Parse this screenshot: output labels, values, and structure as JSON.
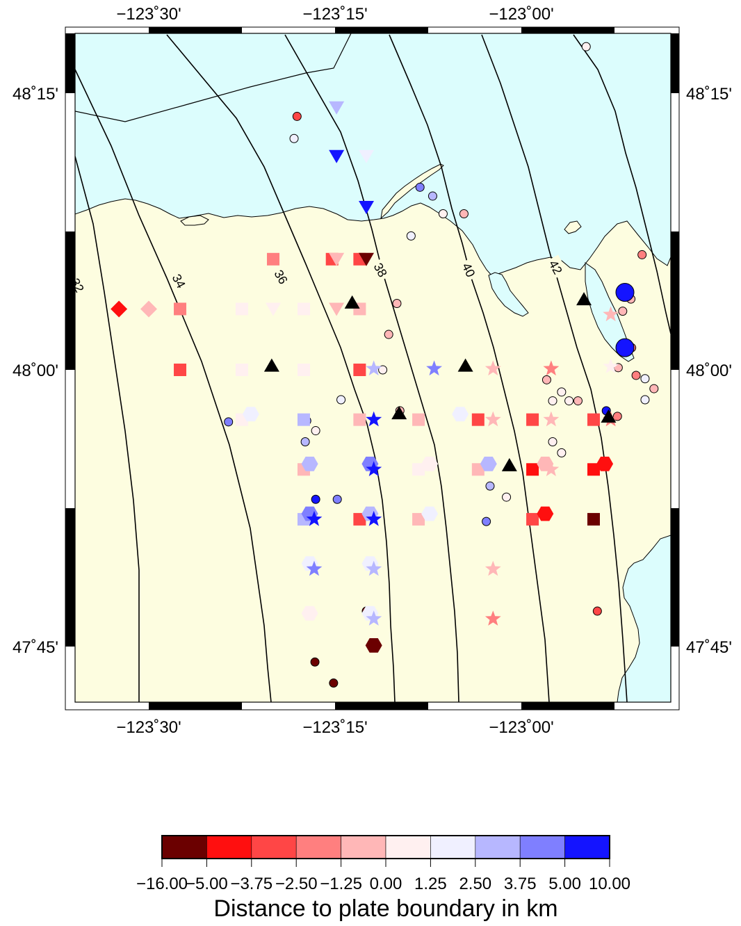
{
  "map": {
    "lon_ticks": [
      {
        "lon": -123.5,
        "label": "−123˚30'"
      },
      {
        "lon": -123.25,
        "label": "−123˚15'"
      },
      {
        "lon": -123.0,
        "label": "−123˚00'"
      }
    ],
    "lat_ticks": [
      {
        "lat": 48.25,
        "label": "48˚15'"
      },
      {
        "lat": 48.0,
        "label": "48˚00'"
      },
      {
        "lat": 47.75,
        "label": "47˚45'"
      }
    ],
    "contours": [
      {
        "label": "32"
      },
      {
        "label": "34"
      },
      {
        "label": "36"
      },
      {
        "label": "38"
      },
      {
        "label": "40"
      },
      {
        "label": "42"
      }
    ],
    "colors": {
      "land": "#fdfde0",
      "water": "#dcfdfd"
    }
  },
  "legend": {
    "title": "Distance to plate boundary in km",
    "bins": [
      {
        "label": "−16.00",
        "color": "#6b0000"
      },
      {
        "label": "−5.00",
        "color": "#ff0f0f"
      },
      {
        "label": "−3.75",
        "color": "#ff4646"
      },
      {
        "label": "−2.50",
        "color": "#ff7f7f"
      },
      {
        "label": "−1.25",
        "color": "#ffb7b7"
      },
      {
        "label": "0.00",
        "color": "#fff0f0"
      },
      {
        "label": "1.25",
        "color": "#f0f0ff"
      },
      {
        "label": "2.50",
        "color": "#b7b7ff"
      },
      {
        "label": "3.75",
        "color": "#7f7fff"
      },
      {
        "label": "5.00",
        "color": "#1414ff"
      },
      {
        "label": "10.00",
        "color": "#00005a"
      }
    ]
  },
  "stations": [
    {
      "shape": "circle",
      "lon": -122.955,
      "lat": 48.328,
      "dist": -10
    },
    {
      "shape": "circle",
      "lon": -122.913,
      "lat": 48.292,
      "dist": 0.2
    },
    {
      "shape": "circle",
      "lon": -123.301,
      "lat": 48.229,
      "dist": -3.5
    },
    {
      "shape": "circle",
      "lon": -123.305,
      "lat": 48.209,
      "dist": 2.3
    },
    {
      "shape": "circle",
      "lon": -123.136,
      "lat": 48.165,
      "dist": 4.5
    },
    {
      "shape": "circle",
      "lon": -123.119,
      "lat": 48.157,
      "dist": 3.5
    },
    {
      "shape": "circle",
      "lon": -123.105,
      "lat": 48.141,
      "dist": 0.4
    },
    {
      "shape": "circle",
      "lon": -123.077,
      "lat": 48.141,
      "dist": -0.2
    },
    {
      "shape": "circle",
      "lon": -123.148,
      "lat": 48.121,
      "dist": 2.0
    },
    {
      "shape": "circle",
      "lon": -122.838,
      "lat": 48.104,
      "dist": -1.8
    },
    {
      "shape": "circle",
      "lon": -122.785,
      "lat": 48.096,
      "dist": -4.2
    },
    {
      "shape": "circle",
      "lon": -123.167,
      "lat": 48.06,
      "dist": -1.2
    },
    {
      "shape": "circle",
      "lon": -123.178,
      "lat": 48.032,
      "dist": -0.8
    },
    {
      "shape": "circle",
      "lon": -122.852,
      "lat": 48.02,
      "dist": -1.5
    },
    {
      "shape": "circle",
      "lon": -122.864,
      "lat": 48.053,
      "dist": -1.0
    },
    {
      "shape": "circle",
      "lon": -122.853,
      "lat": 48.064,
      "dist": -1.2
    },
    {
      "shape": "circle",
      "lon": -123.186,
      "lat": 48.0,
      "dist": 0.1
    },
    {
      "shape": "circle",
      "lon": -122.846,
      "lat": 47.995,
      "dist": -1.5
    },
    {
      "shape": "circle",
      "lon": -122.966,
      "lat": 47.991,
      "dist": -0.5
    },
    {
      "shape": "circle",
      "lon": -122.87,
      "lat": 48.002,
      "dist": -0.3
    },
    {
      "shape": "circle",
      "lon": -122.834,
      "lat": 47.992,
      "dist": 1.8
    },
    {
      "shape": "circle",
      "lon": -122.822,
      "lat": 47.983,
      "dist": -0.5
    },
    {
      "shape": "circle",
      "lon": -122.775,
      "lat": 47.99,
      "dist": 0.5
    },
    {
      "shape": "circle",
      "lon": -122.946,
      "lat": 47.98,
      "dist": 0.3
    },
    {
      "shape": "circle",
      "lon": -122.958,
      "lat": 47.972,
      "dist": 0.5
    },
    {
      "shape": "circle",
      "lon": -122.936,
      "lat": 47.972,
      "dist": 0.1
    },
    {
      "shape": "circle",
      "lon": -122.924,
      "lat": 47.972,
      "dist": -0.2
    },
    {
      "shape": "circle",
      "lon": -122.834,
      "lat": 47.973,
      "dist": 2.2
    },
    {
      "shape": "circle",
      "lon": -123.242,
      "lat": 47.973,
      "dist": 1.8
    },
    {
      "shape": "circle",
      "lon": -123.163,
      "lat": 47.963,
      "dist": -0.5
    },
    {
      "shape": "circle",
      "lon": -122.886,
      "lat": 47.963,
      "dist": 5.5
    },
    {
      "shape": "circle",
      "lon": -122.871,
      "lat": 47.958,
      "dist": -2.5
    },
    {
      "shape": "circle",
      "lon": -123.393,
      "lat": 47.953,
      "dist": 4.2
    },
    {
      "shape": "circle",
      "lon": -123.288,
      "lat": 47.954,
      "dist": 4.2
    },
    {
      "shape": "circle",
      "lon": -123.276,
      "lat": 47.945,
      "dist": 0.2
    },
    {
      "shape": "circle",
      "lon": -123.29,
      "lat": 47.935,
      "dist": 3.2
    },
    {
      "shape": "circle",
      "lon": -122.958,
      "lat": 47.935,
      "dist": 0.4
    },
    {
      "shape": "circle",
      "lon": -122.946,
      "lat": 47.925,
      "dist": 0.2
    },
    {
      "shape": "circle",
      "lon": -123.042,
      "lat": 47.895,
      "dist": 2.8
    },
    {
      "shape": "circle",
      "lon": -123.02,
      "lat": 47.885,
      "dist": 0.5
    },
    {
      "shape": "circle",
      "lon": -123.047,
      "lat": 47.863,
      "dist": 4.2
    },
    {
      "shape": "circle",
      "lon": -123.276,
      "lat": 47.883,
      "dist": 6.0
    },
    {
      "shape": "circle",
      "lon": -123.247,
      "lat": 47.883,
      "dist": 4.0
    },
    {
      "shape": "circle",
      "lon": -123.208,
      "lat": 47.782,
      "dist": -12
    },
    {
      "shape": "circle",
      "lon": -122.898,
      "lat": 47.782,
      "dist": -3.0
    },
    {
      "shape": "circle",
      "lon": -123.277,
      "lat": 47.736,
      "dist": -12
    },
    {
      "shape": "circle",
      "lon": -123.252,
      "lat": 47.717,
      "dist": -12
    },
    {
      "shape": "circle",
      "lon": -122.861,
      "lat": 48.07,
      "dist": 8,
      "size": "large"
    },
    {
      "shape": "circle",
      "lon": -122.861,
      "lat": 48.02,
      "dist": 8,
      "size": "large"
    },
    {
      "shape": "diamond",
      "lon": -123.54,
      "lat": 48.055,
      "dist": -3.8
    },
    {
      "shape": "diamond",
      "lon": -123.5,
      "lat": 48.055,
      "dist": -0.1
    },
    {
      "shape": "square",
      "lon": -123.333,
      "lat": 48.1,
      "dist": -1.5
    },
    {
      "shape": "square",
      "lon": -123.254,
      "lat": 48.1,
      "dist": -2.6
    },
    {
      "shape": "square",
      "lon": -123.217,
      "lat": 48.1,
      "dist": -3.5
    },
    {
      "shape": "square",
      "lon": -123.458,
      "lat": 48.055,
      "dist": -1.6
    },
    {
      "shape": "square",
      "lon": -123.375,
      "lat": 48.055,
      "dist": 0.8
    },
    {
      "shape": "square",
      "lon": -123.292,
      "lat": 48.055,
      "dist": 1.0
    },
    {
      "shape": "square",
      "lon": -123.217,
      "lat": 48.055,
      "dist": -1.2
    },
    {
      "shape": "square",
      "lon": -123.458,
      "lat": 48.0,
      "dist": -2.6
    },
    {
      "shape": "square",
      "lon": -123.375,
      "lat": 48.0,
      "dist": 1.2
    },
    {
      "shape": "square",
      "lon": -123.292,
      "lat": 48.0,
      "dist": 1.2
    },
    {
      "shape": "square",
      "lon": -123.217,
      "lat": 48.0,
      "dist": -3.0
    },
    {
      "shape": "square",
      "lon": -123.375,
      "lat": 47.955,
      "dist": 0.5
    },
    {
      "shape": "square",
      "lon": -123.292,
      "lat": 47.955,
      "dist": 3.0
    },
    {
      "shape": "square",
      "lon": -123.217,
      "lat": 47.955,
      "dist": -0.5
    },
    {
      "shape": "square",
      "lon": -123.138,
      "lat": 47.955,
      "dist": -0.2
    },
    {
      "shape": "square",
      "lon": -123.058,
      "lat": 47.955,
      "dist": -2.6
    },
    {
      "shape": "square",
      "lon": -122.985,
      "lat": 47.955,
      "dist": -3.5
    },
    {
      "shape": "square",
      "lon": -122.903,
      "lat": 47.955,
      "dist": -2.6
    },
    {
      "shape": "square",
      "lon": -123.292,
      "lat": 47.91,
      "dist": -1.2
    },
    {
      "shape": "square",
      "lon": -123.138,
      "lat": 47.91,
      "dist": 0.8
    },
    {
      "shape": "square",
      "lon": -123.058,
      "lat": 47.91,
      "dist": -1.0
    },
    {
      "shape": "square",
      "lon": -122.985,
      "lat": 47.91,
      "dist": -4.0
    },
    {
      "shape": "square",
      "lon": -122.903,
      "lat": 47.91,
      "dist": -4.0
    },
    {
      "shape": "square",
      "lon": -123.292,
      "lat": 47.865,
      "dist": 3.0
    },
    {
      "shape": "square",
      "lon": -123.217,
      "lat": 47.865,
      "dist": -2.6
    },
    {
      "shape": "square",
      "lon": -123.138,
      "lat": 47.865,
      "dist": -1.0
    },
    {
      "shape": "square",
      "lon": -122.985,
      "lat": 47.865,
      "dist": -2.6
    },
    {
      "shape": "square",
      "lon": -122.903,
      "lat": 47.865,
      "dist": -6.0
    },
    {
      "shape": "square",
      "lon": -122.777,
      "lat": 47.82,
      "dist": -12
    },
    {
      "shape": "hexagon",
      "lon": -123.363,
      "lat": 47.96,
      "dist": 2.2
    },
    {
      "shape": "hexagon",
      "lon": -123.082,
      "lat": 47.96,
      "dist": 2.0
    },
    {
      "shape": "hexagon",
      "lon": -123.284,
      "lat": 47.915,
      "dist": 3.0
    },
    {
      "shape": "hexagon",
      "lon": -123.203,
      "lat": 47.915,
      "dist": 4.2
    },
    {
      "shape": "hexagon",
      "lon": -123.123,
      "lat": 47.915,
      "dist": 0.5
    },
    {
      "shape": "hexagon",
      "lon": -123.044,
      "lat": 47.915,
      "dist": 2.8
    },
    {
      "shape": "hexagon",
      "lon": -122.968,
      "lat": 47.915,
      "dist": -1.0
    },
    {
      "shape": "hexagon",
      "lon": -122.888,
      "lat": 47.915,
      "dist": -4.5
    },
    {
      "shape": "hexagon",
      "lon": -123.284,
      "lat": 47.87,
      "dist": 4.0
    },
    {
      "shape": "hexagon",
      "lon": -123.203,
      "lat": 47.87,
      "dist": 3.0
    },
    {
      "shape": "hexagon",
      "lon": -123.123,
      "lat": 47.87,
      "dist": 2.2
    },
    {
      "shape": "hexagon",
      "lon": -122.968,
      "lat": 47.87,
      "dist": -4.5
    },
    {
      "shape": "hexagon",
      "lon": -123.284,
      "lat": 47.825,
      "dist": 2.0
    },
    {
      "shape": "hexagon",
      "lon": -123.203,
      "lat": 47.825,
      "dist": 2.0
    },
    {
      "shape": "hexagon",
      "lon": -123.284,
      "lat": 47.78,
      "dist": 0.2
    },
    {
      "shape": "hexagon",
      "lon": -123.203,
      "lat": 47.78,
      "dist": 2.0
    },
    {
      "shape": "hexagon",
      "lon": -123.198,
      "lat": 47.751,
      "dist": -12
    },
    {
      "shape": "star",
      "lon": -123.198,
      "lat": 48.001,
      "dist": 2.5
    },
    {
      "shape": "star",
      "lon": -123.117,
      "lat": 48.001,
      "dist": 4.0
    },
    {
      "shape": "star",
      "lon": -123.038,
      "lat": 48.001,
      "dist": -0.8
    },
    {
      "shape": "star",
      "lon": -122.96,
      "lat": 48.001,
      "dist": -2.2
    },
    {
      "shape": "star",
      "lon": -123.198,
      "lat": 47.955,
      "dist": 8
    },
    {
      "shape": "star",
      "lon": -123.038,
      "lat": 47.955,
      "dist": -1.0
    },
    {
      "shape": "star",
      "lon": -122.96,
      "lat": 47.955,
      "dist": -0.8
    },
    {
      "shape": "star",
      "lon": -122.88,
      "lat": 47.955,
      "dist": -2.0
    },
    {
      "shape": "star",
      "lon": -123.198,
      "lat": 47.91,
      "dist": 8
    },
    {
      "shape": "star",
      "lon": -122.96,
      "lat": 47.91,
      "dist": -0.8
    },
    {
      "shape": "star",
      "lon": -123.278,
      "lat": 47.865,
      "dist": 8
    },
    {
      "shape": "star",
      "lon": -123.198,
      "lat": 47.865,
      "dist": 8
    },
    {
      "shape": "star",
      "lon": -123.278,
      "lat": 47.82,
      "dist": 4.2
    },
    {
      "shape": "star",
      "lon": -123.198,
      "lat": 47.82,
      "dist": 2.8
    },
    {
      "shape": "star",
      "lon": -123.038,
      "lat": 47.82,
      "dist": -1.0
    },
    {
      "shape": "star",
      "lon": -123.198,
      "lat": 47.775,
      "dist": 2.8
    },
    {
      "shape": "star",
      "lon": -123.038,
      "lat": 47.775,
      "dist": -2.0
    },
    {
      "shape": "star",
      "lon": -122.88,
      "lat": 48.05,
      "dist": -0.8
    },
    {
      "shape": "star",
      "lon": -122.88,
      "lat": 48.003,
      "dist": 0.8
    },
    {
      "shape": "invtriangle",
      "lon": -123.248,
      "lat": 48.237,
      "dist": 3.2
    },
    {
      "shape": "invtriangle",
      "lon": -123.248,
      "lat": 48.193,
      "dist": 8
    },
    {
      "shape": "invtriangle",
      "lon": -123.208,
      "lat": 48.193,
      "dist": 1.5
    },
    {
      "shape": "invtriangle",
      "lon": -123.208,
      "lat": 48.147,
      "dist": 8
    },
    {
      "shape": "invtriangle",
      "lon": -123.248,
      "lat": 48.1,
      "dist": -1.2
    },
    {
      "shape": "invtriangle",
      "lon": -123.208,
      "lat": 48.1,
      "dist": -5.5
    },
    {
      "shape": "invtriangle",
      "lon": -123.333,
      "lat": 48.055,
      "dist": 1.0
    },
    {
      "shape": "invtriangle",
      "lon": -123.248,
      "lat": 48.055,
      "dist": -0.8
    },
    {
      "shape": "triangle",
      "lon": -123.227,
      "lat": 48.061,
      "color": "#000000"
    },
    {
      "shape": "triangle",
      "lon": -123.335,
      "lat": 48.004,
      "color": "#000000"
    },
    {
      "shape": "triangle",
      "lon": -123.075,
      "lat": 48.004,
      "color": "#000000"
    },
    {
      "shape": "triangle",
      "lon": -123.164,
      "lat": 47.961,
      "color": "#000000"
    },
    {
      "shape": "triangle",
      "lon": -123.016,
      "lat": 47.914,
      "color": "#000000"
    },
    {
      "shape": "triangle",
      "lon": -122.916,
      "lat": 48.064,
      "color": "#000000"
    },
    {
      "shape": "triangle",
      "lon": -122.883,
      "lat": 47.958,
      "color": "#000000"
    }
  ]
}
